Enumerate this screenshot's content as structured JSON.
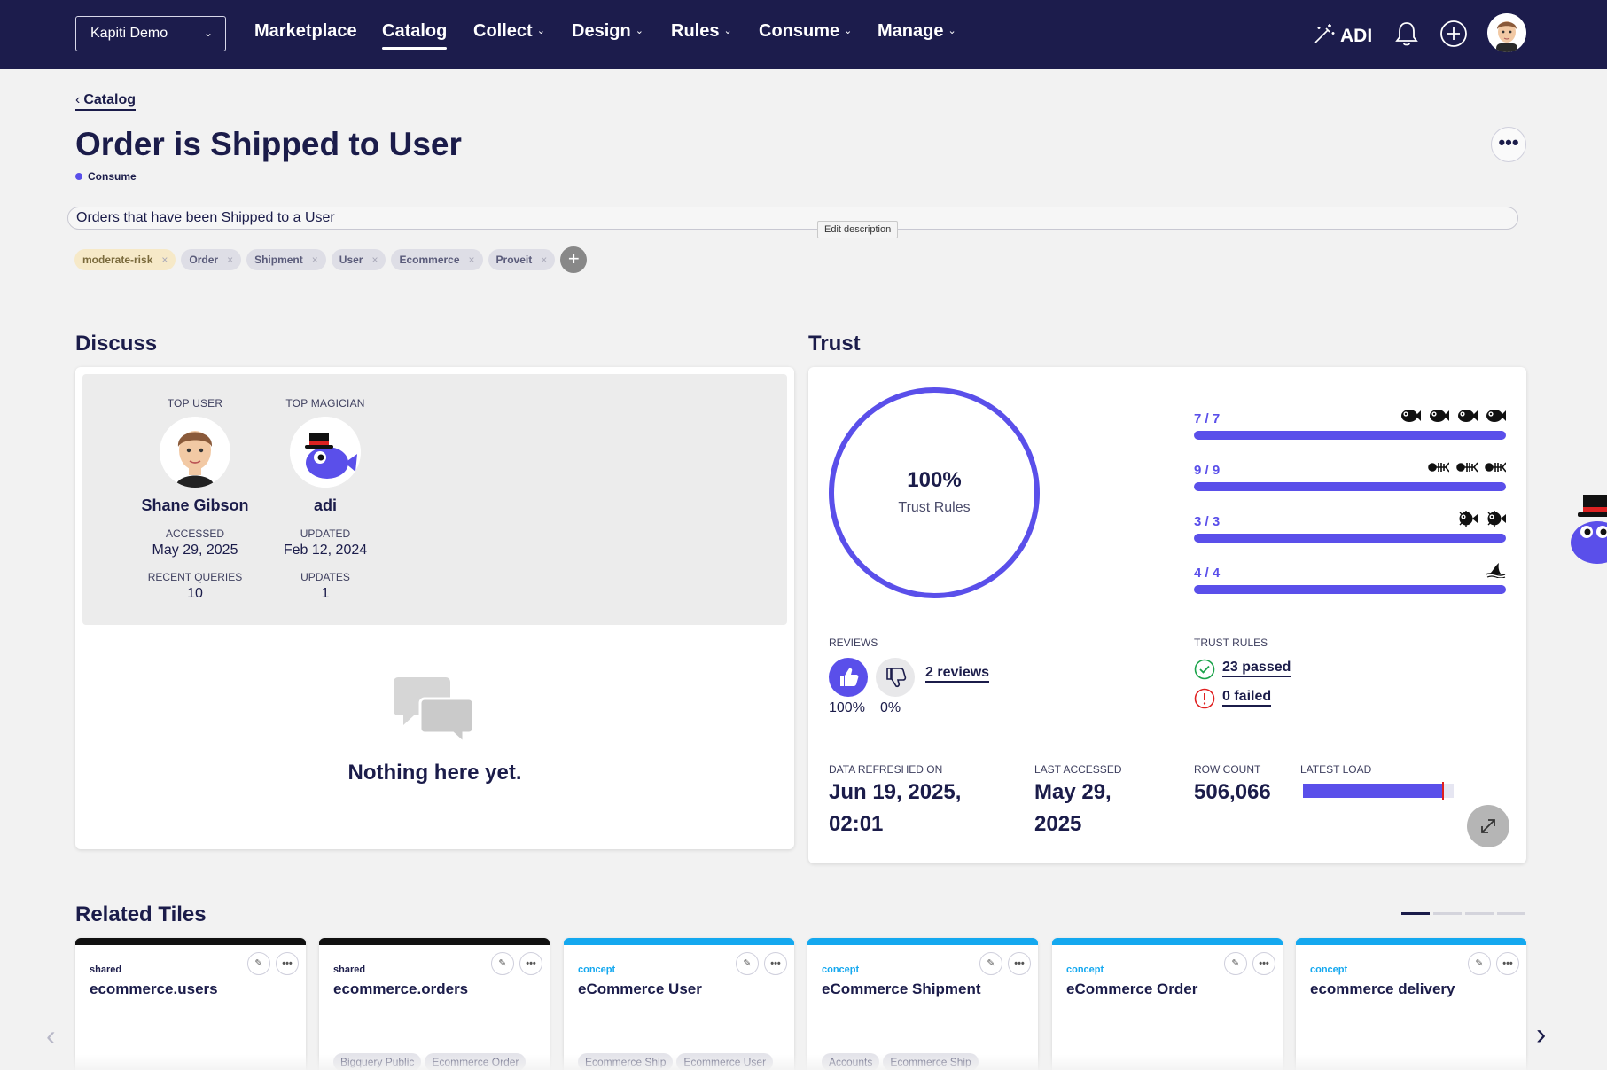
{
  "nav": {
    "tenant": "Kapiti Demo",
    "items": [
      {
        "label": "Marketplace",
        "caret": false,
        "active": false
      },
      {
        "label": "Catalog",
        "caret": false,
        "active": true
      },
      {
        "label": "Collect",
        "caret": true,
        "active": false
      },
      {
        "label": "Design",
        "caret": true,
        "active": false
      },
      {
        "label": "Rules",
        "caret": true,
        "active": false
      },
      {
        "label": "Consume",
        "caret": true,
        "active": false
      },
      {
        "label": "Manage",
        "caret": true,
        "active": false
      }
    ],
    "adi_label": "ADI",
    "icons": [
      "magic-wand-icon",
      "bell-icon",
      "plus-circle-icon",
      "avatar"
    ]
  },
  "header": {
    "breadcrumb": "Catalog",
    "title": "Order is Shipped to User",
    "badge": "Consume",
    "description": "Orders that have been Shipped to a User",
    "tooltip": "Edit description",
    "tags": [
      "moderate-risk",
      "Order",
      "Shipment",
      "User",
      "Ecommerce",
      "Proveit"
    ]
  },
  "discuss": {
    "heading": "Discuss",
    "top_user": {
      "label": "TOP USER",
      "name": "Shane Gibson",
      "stat1_label": "ACCESSED",
      "stat1_value": "May 29, 2025",
      "stat2_label": "RECENT QUERIES",
      "stat2_value": "10"
    },
    "top_magician": {
      "label": "TOP MAGICIAN",
      "name": "adi",
      "stat1_label": "UPDATED",
      "stat1_value": "Feb 12, 2024",
      "stat2_label": "UPDATES",
      "stat2_value": "1"
    },
    "empty_text": "Nothing here yet."
  },
  "trust": {
    "heading": "Trust",
    "ring_percent": "100%",
    "ring_label": "Trust Rules",
    "ring_fraction": 1.0,
    "bars": [
      {
        "fraction": "7 / 7",
        "value": 1.0,
        "icon": "fish-icon",
        "icon_count": 4
      },
      {
        "fraction": "9 / 9",
        "value": 1.0,
        "icon": "fish-skeleton-icon",
        "icon_count": 3
      },
      {
        "fraction": "3 / 3",
        "value": 1.0,
        "icon": "puffer-fish-icon",
        "icon_count": 2
      },
      {
        "fraction": "4 / 4",
        "value": 1.0,
        "icon": "shark-fin-icon",
        "icon_count": 1
      }
    ],
    "reviews_label": "REVIEWS",
    "reviews_link": "2 reviews",
    "thumbs_up_pct": "100%",
    "thumbs_down_pct": "0%",
    "trust_rules_label": "TRUST RULES",
    "passed": "23 passed",
    "failed": "0 failed",
    "refreshed_label": "DATA REFRESHED ON",
    "refreshed_value_1": "Jun 19, 2025,",
    "refreshed_value_2": "02:01",
    "accessed_label": "LAST ACCESSED",
    "accessed_value_1": "May 29,",
    "accessed_value_2": "2025",
    "row_count_label": "ROW COUNT",
    "row_count_value": "506,066",
    "latest_load_label": "LATEST LOAD",
    "latest_load_fraction": 0.93
  },
  "related": {
    "heading": "Related Tiles",
    "tiles": [
      {
        "kind": "shared",
        "name": "ecommerce.users",
        "stripe": "#111111",
        "kind_color": "#1b1c4a",
        "tags": []
      },
      {
        "kind": "shared",
        "name": "ecommerce.orders",
        "stripe": "#111111",
        "kind_color": "#1b1c4a",
        "tags": [
          "Bigquery Public",
          "Ecommerce Order"
        ]
      },
      {
        "kind": "concept",
        "name": "eCommerce User",
        "stripe": "#14a8ef",
        "kind_color": "#14a8ef",
        "tags": [
          "Ecommerce Ship",
          "Ecommerce User"
        ]
      },
      {
        "kind": "concept",
        "name": "eCommerce Shipment",
        "stripe": "#14a8ef",
        "kind_color": "#14a8ef",
        "tags": [
          "Accounts",
          "Ecommerce Ship"
        ]
      },
      {
        "kind": "concept",
        "name": "eCommerce Order",
        "stripe": "#14a8ef",
        "kind_color": "#14a8ef",
        "tags": []
      },
      {
        "kind": "concept",
        "name": "ecommerce delivery",
        "stripe": "#14a8ef",
        "kind_color": "#14a8ef",
        "tags": []
      }
    ]
  },
  "colors": {
    "nav_bg": "#1c1c4c",
    "accent": "#5a4fea",
    "passed": "#1ba34a",
    "failed": "#e02020"
  }
}
